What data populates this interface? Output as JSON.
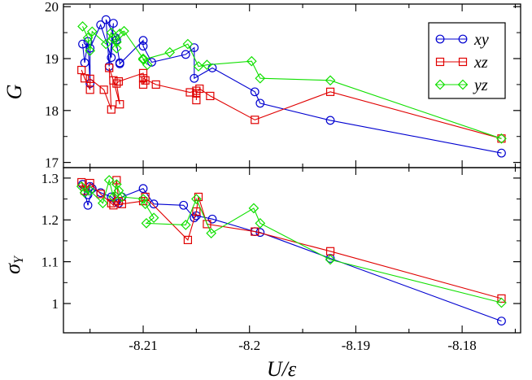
{
  "chart_data": [
    {
      "type": "line",
      "panel": "top",
      "ylabel": "G",
      "ylim": [
        16.9,
        20.05
      ],
      "yticks": [
        17,
        18,
        19,
        20
      ],
      "xlim": [
        -8.2175,
        -8.1745
      ],
      "legend": {
        "position": "top-right",
        "entries": [
          "xy",
          "xz",
          "yz"
        ]
      },
      "series": [
        {
          "name": "xy",
          "color": "#0000d0",
          "marker": "circle",
          "x": [
            -8.2157,
            -8.2155,
            -8.2152,
            -8.215,
            -8.215,
            -8.214,
            -8.213,
            -8.2128,
            -8.2132,
            -8.2135,
            -8.2125,
            -8.2126,
            -8.2122,
            -8.2122,
            -8.21,
            -8.21,
            -8.2092,
            -8.206,
            -8.2052,
            -8.2052,
            -8.2035,
            -8.1995,
            -8.199,
            -8.1924,
            -8.1763
          ],
          "y": [
            19.28,
            18.92,
            19.33,
            18.52,
            19.2,
            19.65,
            19.02,
            19.68,
            18.85,
            19.75,
            19.36,
            19.4,
            18.92,
            18.9,
            19.35,
            19.24,
            18.93,
            19.08,
            19.21,
            18.62,
            18.82,
            18.36,
            18.14,
            17.81,
            17.18
          ]
        },
        {
          "name": "xz",
          "color": "#e00000",
          "marker": "square",
          "x": [
            -8.2158,
            -8.2155,
            -8.215,
            -8.215,
            -8.2137,
            -8.213,
            -8.2132,
            -8.2128,
            -8.2122,
            -8.2125,
            -8.2123,
            -8.21,
            -8.2098,
            -8.21,
            -8.21,
            -8.2088,
            -8.2056,
            -8.205,
            -8.205,
            -8.205,
            -8.2047,
            -8.2037,
            -8.1995,
            -8.1924,
            -8.1763
          ],
          "y": [
            18.78,
            18.62,
            18.4,
            18.61,
            18.4,
            18.02,
            18.82,
            18.58,
            18.12,
            18.52,
            18.56,
            18.72,
            18.58,
            18.5,
            18.62,
            18.5,
            18.35,
            18.38,
            18.2,
            18.33,
            18.42,
            18.28,
            17.82,
            18.36,
            17.46
          ]
        },
        {
          "name": "yz",
          "color": "#10e000",
          "marker": "diamond",
          "x": [
            -8.2157,
            -8.2152,
            -8.215,
            -8.2148,
            -8.2135,
            -8.213,
            -8.2128,
            -8.2125,
            -8.2125,
            -8.2122,
            -8.2118,
            -8.21,
            -8.2096,
            -8.21,
            -8.2075,
            -8.2058,
            -8.2048,
            -8.204,
            -8.1998,
            -8.199,
            -8.1924,
            -8.1763
          ],
          "y": [
            19.62,
            19.4,
            19.15,
            19.52,
            19.28,
            19.5,
            19.38,
            19.2,
            19.32,
            19.48,
            19.53,
            19.0,
            18.88,
            18.98,
            19.12,
            19.28,
            18.85,
            18.88,
            18.95,
            18.62,
            18.58,
            17.46
          ]
        }
      ]
    },
    {
      "type": "line",
      "panel": "bottom",
      "ylabel": "σY",
      "ylim": [
        0.93,
        1.325
      ],
      "yticks": [
        1,
        1.1,
        1.2,
        1.3
      ],
      "xlim": [
        -8.2175,
        -8.1745
      ],
      "xlabel": "U/ε",
      "xticks": [
        -8.21,
        -8.2,
        -8.19,
        -8.18
      ],
      "series": [
        {
          "name": "xy",
          "color": "#0000d0",
          "marker": "circle",
          "x": [
            -8.2157,
            -8.2152,
            -8.2148,
            -8.214,
            -8.213,
            -8.2125,
            -8.2123,
            -8.212,
            -8.21,
            -8.209,
            -8.2062,
            -8.2052,
            -8.205,
            -8.2035,
            -8.1995,
            -8.199,
            -8.1924,
            -8.1763
          ],
          "y": [
            1.285,
            1.235,
            1.275,
            1.265,
            1.255,
            1.245,
            1.24,
            1.255,
            1.275,
            1.238,
            1.235,
            1.205,
            1.21,
            1.202,
            1.172,
            1.17,
            1.108,
            0.958
          ],
          "tail_x": [
            -8.2152,
            -8.215
          ],
          "tail_y": [
            1.26,
            1.28
          ]
        },
        {
          "name": "xz",
          "color": "#e00000",
          "marker": "square",
          "x": [
            -8.2158,
            -8.2155,
            -8.215,
            -8.214,
            -8.213,
            -8.2128,
            -8.2125,
            -8.2123,
            -8.212,
            -8.21,
            -8.2098,
            -8.2058,
            -8.205,
            -8.2048,
            -8.204,
            -8.1995,
            -8.1924,
            -8.1763
          ],
          "y": [
            1.29,
            1.27,
            1.288,
            1.262,
            1.24,
            1.235,
            1.295,
            1.245,
            1.238,
            1.245,
            1.255,
            1.152,
            1.22,
            1.255,
            1.19,
            1.172,
            1.125,
            1.012
          ]
        },
        {
          "name": "yz",
          "color": "#10e000",
          "marker": "diamond",
          "x": [
            -8.2158,
            -8.2155,
            -8.215,
            -8.2138,
            -8.2132,
            -8.2128,
            -8.2125,
            -8.2123,
            -8.212,
            -8.21,
            -8.2098,
            -8.209,
            -8.2097,
            -8.206,
            -8.205,
            -8.2036,
            -8.1996,
            -8.199,
            -8.1924,
            -8.1763
          ],
          "y": [
            1.28,
            1.265,
            1.27,
            1.24,
            1.295,
            1.255,
            1.285,
            1.27,
            1.255,
            1.25,
            1.238,
            1.205,
            1.192,
            1.188,
            1.25,
            1.168,
            1.228,
            1.192,
            1.105,
            1.002
          ]
        }
      ]
    }
  ]
}
